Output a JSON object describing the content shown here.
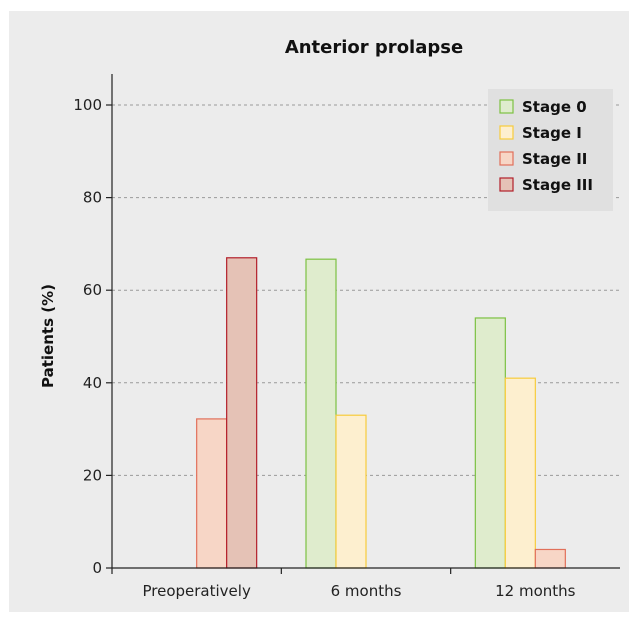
{
  "chart_data": {
    "type": "bar",
    "title": "Anterior prolapse",
    "xlabel": "",
    "ylabel": "Patients (%)",
    "ylim": [
      0,
      100
    ],
    "yticks": [
      0,
      20,
      40,
      60,
      80,
      100
    ],
    "grid": true,
    "legend_position": "top-right",
    "categories": [
      "Preoperatively",
      "6 months",
      "12 months"
    ],
    "series": [
      {
        "name": "Stage 0",
        "values": [
          0,
          66.7,
          54.0
        ],
        "fill": "#dfeccd",
        "stroke": "#7cc142"
      },
      {
        "name": "Stage I",
        "values": [
          0,
          33.0,
          41.0
        ],
        "fill": "#fdefcf",
        "stroke": "#f7cb3c"
      },
      {
        "name": "Stage II",
        "values": [
          32.2,
          0,
          4.0
        ],
        "fill": "#f7d6c6",
        "stroke": "#e1705a"
      },
      {
        "name": "Stage III",
        "values": [
          67.0,
          0,
          0
        ],
        "fill": "#e5c2b6",
        "stroke": "#b21e2a"
      }
    ]
  }
}
